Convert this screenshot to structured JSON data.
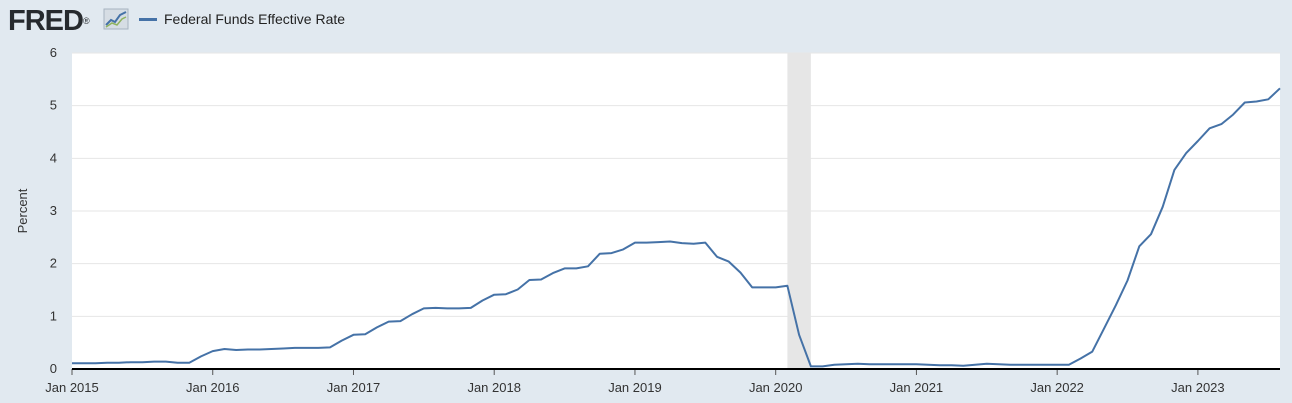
{
  "header": {
    "logo_text": "FRED",
    "logo_mark": "®",
    "logo_icon": "line-graph-icon",
    "legend_label": "Federal Funds Effective Rate",
    "series_color": "#4572a7"
  },
  "chart_data": {
    "type": "line",
    "title": "",
    "xlabel": "",
    "ylabel": "Percent",
    "xlim": [
      "2015-01",
      "2023-08"
    ],
    "ylim": [
      0,
      6
    ],
    "yticks": [
      "0",
      "1",
      "2",
      "3",
      "4",
      "5",
      "6"
    ],
    "xticks": [
      {
        "date": "2015-01",
        "label": "Jan 2015"
      },
      {
        "date": "2016-01",
        "label": "Jan 2016"
      },
      {
        "date": "2017-01",
        "label": "Jan 2017"
      },
      {
        "date": "2018-01",
        "label": "Jan 2018"
      },
      {
        "date": "2019-01",
        "label": "Jan 2019"
      },
      {
        "date": "2020-01",
        "label": "Jan 2020"
      },
      {
        "date": "2021-01",
        "label": "Jan 2021"
      },
      {
        "date": "2022-01",
        "label": "Jan 2022"
      },
      {
        "date": "2023-01",
        "label": "Jan 2023"
      }
    ],
    "grid": "horizontal",
    "recession": {
      "start": "2020-02",
      "end": "2020-04",
      "color": "#e6e6e6"
    },
    "series": [
      {
        "name": "Federal Funds Effective Rate",
        "color": "#4572a7",
        "points": [
          [
            "2015-01",
            0.11
          ],
          [
            "2015-02",
            0.11
          ],
          [
            "2015-03",
            0.11
          ],
          [
            "2015-04",
            0.12
          ],
          [
            "2015-05",
            0.12
          ],
          [
            "2015-06",
            0.13
          ],
          [
            "2015-07",
            0.13
          ],
          [
            "2015-08",
            0.14
          ],
          [
            "2015-09",
            0.14
          ],
          [
            "2015-10",
            0.12
          ],
          [
            "2015-11",
            0.12
          ],
          [
            "2015-12",
            0.24
          ],
          [
            "2016-01",
            0.34
          ],
          [
            "2016-02",
            0.38
          ],
          [
            "2016-03",
            0.36
          ],
          [
            "2016-04",
            0.37
          ],
          [
            "2016-05",
            0.37
          ],
          [
            "2016-06",
            0.38
          ],
          [
            "2016-07",
            0.39
          ],
          [
            "2016-08",
            0.4
          ],
          [
            "2016-09",
            0.4
          ],
          [
            "2016-10",
            0.4
          ],
          [
            "2016-11",
            0.41
          ],
          [
            "2016-12",
            0.54
          ],
          [
            "2017-01",
            0.65
          ],
          [
            "2017-02",
            0.66
          ],
          [
            "2017-03",
            0.79
          ],
          [
            "2017-04",
            0.9
          ],
          [
            "2017-05",
            0.91
          ],
          [
            "2017-06",
            1.04
          ],
          [
            "2017-07",
            1.15
          ],
          [
            "2017-08",
            1.16
          ],
          [
            "2017-09",
            1.15
          ],
          [
            "2017-10",
            1.15
          ],
          [
            "2017-11",
            1.16
          ],
          [
            "2017-12",
            1.3
          ],
          [
            "2018-01",
            1.41
          ],
          [
            "2018-02",
            1.42
          ],
          [
            "2018-03",
            1.51
          ],
          [
            "2018-04",
            1.69
          ],
          [
            "2018-05",
            1.7
          ],
          [
            "2018-06",
            1.82
          ],
          [
            "2018-07",
            1.91
          ],
          [
            "2018-08",
            1.91
          ],
          [
            "2018-09",
            1.95
          ],
          [
            "2018-10",
            2.19
          ],
          [
            "2018-11",
            2.2
          ],
          [
            "2018-12",
            2.27
          ],
          [
            "2019-01",
            2.4
          ],
          [
            "2019-02",
            2.4
          ],
          [
            "2019-03",
            2.41
          ],
          [
            "2019-04",
            2.42
          ],
          [
            "2019-05",
            2.39
          ],
          [
            "2019-06",
            2.38
          ],
          [
            "2019-07",
            2.4
          ],
          [
            "2019-08",
            2.13
          ],
          [
            "2019-09",
            2.04
          ],
          [
            "2019-10",
            1.83
          ],
          [
            "2019-11",
            1.55
          ],
          [
            "2019-12",
            1.55
          ],
          [
            "2020-01",
            1.55
          ],
          [
            "2020-02",
            1.58
          ],
          [
            "2020-03",
            0.65
          ],
          [
            "2020-04",
            0.05
          ],
          [
            "2020-05",
            0.05
          ],
          [
            "2020-06",
            0.08
          ],
          [
            "2020-07",
            0.09
          ],
          [
            "2020-08",
            0.1
          ],
          [
            "2020-09",
            0.09
          ],
          [
            "2020-10",
            0.09
          ],
          [
            "2020-11",
            0.09
          ],
          [
            "2020-12",
            0.09
          ],
          [
            "2021-01",
            0.09
          ],
          [
            "2021-02",
            0.08
          ],
          [
            "2021-03",
            0.07
          ],
          [
            "2021-04",
            0.07
          ],
          [
            "2021-05",
            0.06
          ],
          [
            "2021-06",
            0.08
          ],
          [
            "2021-07",
            0.1
          ],
          [
            "2021-08",
            0.09
          ],
          [
            "2021-09",
            0.08
          ],
          [
            "2021-10",
            0.08
          ],
          [
            "2021-11",
            0.08
          ],
          [
            "2021-12",
            0.08
          ],
          [
            "2022-01",
            0.08
          ],
          [
            "2022-02",
            0.08
          ],
          [
            "2022-03",
            0.2
          ],
          [
            "2022-04",
            0.33
          ],
          [
            "2022-05",
            0.77
          ],
          [
            "2022-06",
            1.21
          ],
          [
            "2022-07",
            1.68
          ],
          [
            "2022-08",
            2.33
          ],
          [
            "2022-09",
            2.56
          ],
          [
            "2022-10",
            3.08
          ],
          [
            "2022-11",
            3.78
          ],
          [
            "2022-12",
            4.1
          ],
          [
            "2023-01",
            4.33
          ],
          [
            "2023-02",
            4.57
          ],
          [
            "2023-03",
            4.65
          ],
          [
            "2023-04",
            4.83
          ],
          [
            "2023-05",
            5.06
          ],
          [
            "2023-06",
            5.08
          ],
          [
            "2023-07",
            5.12
          ],
          [
            "2023-08",
            5.33
          ]
        ]
      }
    ]
  }
}
